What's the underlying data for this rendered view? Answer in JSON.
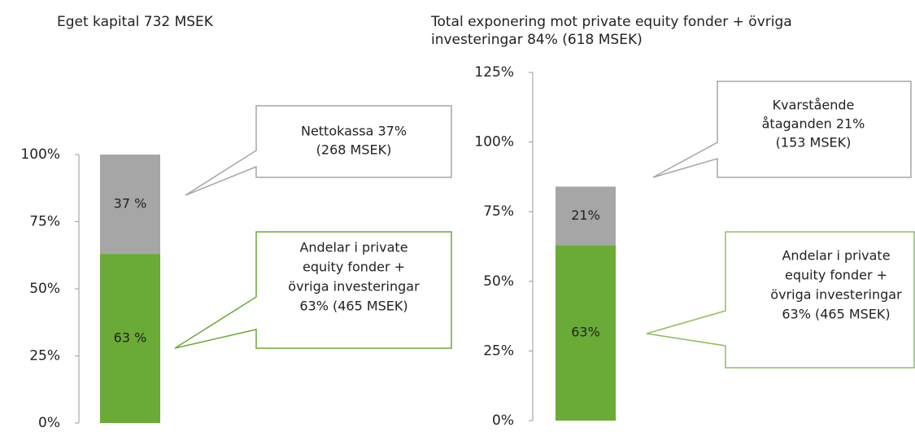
{
  "chart_data": [
    {
      "type": "bar",
      "stacked": true,
      "title": "Eget kapital 732 MSEK",
      "categories": [
        null
      ],
      "series": [
        {
          "color": "#6aaa36",
          "values": [
            63
          ],
          "value_labels": [
            "63 %"
          ]
        },
        {
          "color": "#a6a6a6",
          "values": [
            37
          ],
          "value_labels": [
            "37 %"
          ]
        }
      ],
      "ylim": [
        0,
        100
      ],
      "yticks": [
        {
          "value": 0,
          "label": "0%"
        },
        {
          "value": 25,
          "label": "25%"
        },
        {
          "value": 50,
          "label": "50%"
        },
        {
          "value": 75,
          "label": "75%"
        },
        {
          "value": 100,
          "label": "100%"
        }
      ],
      "annotations": [
        {
          "lines": [
            "Nettokassa 37%",
            "(268 MSEK)"
          ],
          "color": "#a6a6a6"
        },
        {
          "lines": [
            "Andelar i private",
            "equity fonder +",
            "övriga investeringar",
            "63% (465 MSEK)"
          ],
          "color": "#6aaa36"
        }
      ]
    },
    {
      "type": "bar",
      "stacked": true,
      "title": "Total exponering mot private equity fonder + övriga investeringar 84% (618 MSEK)",
      "categories": [
        null
      ],
      "series": [
        {
          "color": "#6aaa36",
          "values": [
            63
          ],
          "value_labels": [
            "63%"
          ]
        },
        {
          "color": "#a6a6a6",
          "values": [
            21
          ],
          "value_labels": [
            "21%"
          ]
        }
      ],
      "ylim": [
        0,
        125
      ],
      "yticks": [
        {
          "value": 0,
          "label": "0%"
        },
        {
          "value": 25,
          "label": "25%"
        },
        {
          "value": 50,
          "label": "50%"
        },
        {
          "value": 75,
          "label": "75%"
        },
        {
          "value": 100,
          "label": "100%"
        },
        {
          "value": 125,
          "label": "125%"
        }
      ],
      "annotations": [
        {
          "lines": [
            "Kvarstående",
            "åtaganden 21%",
            "(153 MSEK)"
          ],
          "color": "#a6a6a6"
        },
        {
          "lines": [
            "Andelar i private",
            "equity fonder +",
            "övriga investeringar",
            "63% (465 MSEK)"
          ],
          "color": "#8fbf5a"
        }
      ]
    }
  ]
}
